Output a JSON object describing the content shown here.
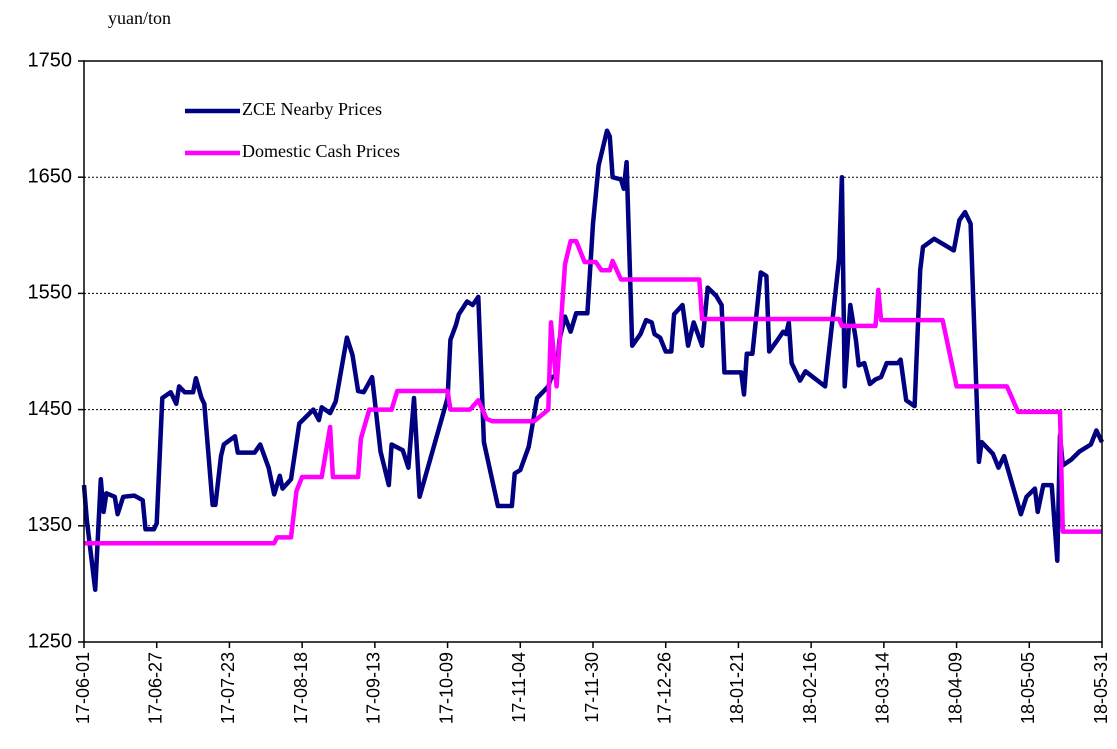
{
  "chart_data": {
    "type": "line",
    "y_label": "yuan/ton",
    "ylim": [
      1250,
      1750
    ],
    "yticks": [
      1250,
      1350,
      1450,
      1550,
      1650,
      1750
    ],
    "grid": true,
    "xlim": [
      "17-06-01",
      "18-05-31"
    ],
    "xticks": [
      "17-06-01",
      "17-06-27",
      "17-07-23",
      "17-08-18",
      "17-09-13",
      "17-10-09",
      "17-11-04",
      "17-11-30",
      "17-12-26",
      "18-01-21",
      "18-02-16",
      "18-03-14",
      "18-04-09",
      "18-05-05",
      "18-05-31"
    ],
    "legend": "upper left",
    "series": [
      {
        "name": "ZCE Nearby Prices",
        "color": "#000080",
        "x": [
          "17-06-01",
          "17-06-02",
          "17-06-05",
          "17-06-07",
          "17-06-08",
          "17-06-09",
          "17-06-12",
          "17-06-13",
          "17-06-15",
          "17-06-19",
          "17-06-22",
          "17-06-23",
          "17-06-26",
          "17-06-27",
          "17-06-29",
          "17-07-02",
          "17-07-04",
          "17-07-05",
          "17-07-07",
          "17-07-10",
          "17-07-11",
          "17-07-13",
          "17-07-14",
          "17-07-17",
          "17-07-18",
          "17-07-20",
          "17-07-21",
          "17-07-25",
          "17-07-26",
          "17-08-01",
          "17-08-03",
          "17-08-06",
          "17-08-08",
          "17-08-10",
          "17-08-11",
          "17-08-14",
          "17-08-17",
          "17-08-22",
          "17-08-24",
          "17-08-25",
          "17-08-28",
          "17-08-30",
          "17-09-03",
          "17-09-05",
          "17-09-07",
          "17-09-09",
          "17-09-12",
          "17-09-15",
          "17-09-18",
          "17-09-19",
          "17-09-23",
          "17-09-25",
          "17-09-27",
          "17-09-29",
          "17-10-09",
          "17-10-10",
          "17-10-12",
          "17-10-13",
          "17-10-16",
          "17-10-18",
          "17-10-20",
          "17-10-22",
          "17-10-24",
          "17-10-27",
          "17-11-01",
          "17-11-02",
          "17-11-04",
          "17-11-07",
          "17-11-10",
          "17-11-14",
          "17-11-15",
          "17-11-17",
          "17-11-18",
          "17-11-20",
          "17-11-22",
          "17-11-24",
          "17-11-28",
          "17-11-30",
          "17-12-02",
          "17-12-05",
          "17-12-06",
          "17-12-07",
          "17-12-10",
          "17-12-11",
          "17-12-12",
          "17-12-14",
          "17-12-17",
          "17-12-19",
          "17-12-21",
          "17-12-22",
          "17-12-24",
          "17-12-26",
          "17-12-28",
          "17-12-29",
          "18-01-01",
          "18-01-03",
          "18-01-05",
          "18-01-08",
          "18-01-10",
          "18-01-13",
          "18-01-15",
          "18-01-16",
          "18-01-22",
          "18-01-23",
          "18-01-24",
          "18-01-26",
          "18-01-29",
          "18-01-31",
          "18-02-01",
          "18-02-04",
          "18-02-06",
          "18-02-07",
          "18-02-08",
          "18-02-09",
          "18-02-11",
          "18-02-12",
          "18-02-14",
          "18-02-21",
          "18-02-24",
          "18-02-26",
          "18-02-27",
          "18-02-28",
          "18-03-02",
          "18-03-04",
          "18-03-05",
          "18-03-07",
          "18-03-09",
          "18-03-11",
          "18-03-13",
          "18-03-15",
          "18-03-19",
          "18-03-20",
          "18-03-22",
          "18-03-25",
          "18-03-27",
          "18-03-28",
          "18-04-01",
          "18-04-08",
          "18-04-10",
          "18-04-12",
          "18-04-14",
          "18-04-17",
          "18-04-18",
          "18-04-20",
          "18-04-22",
          "18-04-24",
          "18-04-26",
          "18-05-02",
          "18-05-04",
          "18-05-07",
          "18-05-08",
          "18-05-10",
          "18-05-13",
          "18-05-15",
          "18-05-16",
          "18-05-17",
          "18-05-20",
          "18-05-23",
          "18-05-27",
          "18-05-29",
          "18-05-31"
        ],
        "values": [
          1385,
          1355,
          1295,
          1390,
          1362,
          1378,
          1375,
          1360,
          1375,
          1376,
          1372,
          1347,
          1347,
          1352,
          1460,
          1465,
          1455,
          1470,
          1465,
          1465,
          1477,
          1460,
          1455,
          1368,
          1368,
          1410,
          1420,
          1427,
          1413,
          1413,
          1420,
          1400,
          1377,
          1393,
          1382,
          1390,
          1438,
          1450,
          1441,
          1452,
          1447,
          1457,
          1512,
          1497,
          1466,
          1465,
          1478,
          1414,
          1385,
          1420,
          1415,
          1400,
          1460,
          1375,
          1460,
          1510,
          1523,
          1532,
          1543,
          1540,
          1547,
          1422,
          1400,
          1367,
          1367,
          1395,
          1398,
          1418,
          1460,
          1470,
          1477,
          1480,
          1510,
          1530,
          1517,
          1533,
          1533,
          1610,
          1660,
          1690,
          1685,
          1650,
          1648,
          1640,
          1663,
          1505,
          1515,
          1527,
          1525,
          1515,
          1512,
          1500,
          1500,
          1532,
          1540,
          1505,
          1525,
          1505,
          1555,
          1548,
          1540,
          1482,
          1482,
          1463,
          1498,
          1498,
          1568,
          1565,
          1500,
          1510,
          1517,
          1515,
          1525,
          1490,
          1480,
          1475,
          1483,
          1470,
          1535,
          1580,
          1650,
          1470,
          1540,
          1510,
          1488,
          1490,
          1472,
          1476,
          1478,
          1490,
          1490,
          1493,
          1458,
          1453,
          1570,
          1590,
          1597,
          1587,
          1613,
          1620,
          1610,
          1405,
          1422,
          1417,
          1412,
          1400,
          1410,
          1360,
          1375,
          1382,
          1362,
          1385,
          1385,
          1320,
          1428,
          1402,
          1407,
          1414,
          1420,
          1432,
          1422
        ]
      },
      {
        "name": "Domestic Cash Prices",
        "color": "#ff00ff",
        "x": [
          "17-06-01",
          "17-08-08",
          "17-08-09",
          "17-08-14",
          "17-08-16",
          "17-08-18",
          "17-08-25",
          "17-08-28",
          "17-08-29",
          "17-09-07",
          "17-09-08",
          "17-09-11",
          "17-09-19",
          "17-09-21",
          "17-10-09",
          "17-10-10",
          "17-10-17",
          "17-10-20",
          "17-10-23",
          "17-10-25",
          "17-11-09",
          "17-11-14",
          "17-11-15",
          "17-11-17",
          "17-11-20",
          "17-11-22",
          "17-11-24",
          "17-11-27",
          "17-12-01",
          "17-12-03",
          "17-12-06",
          "17-12-07",
          "17-12-10",
          "18-01-07",
          "18-01-08",
          "18-02-26",
          "18-02-27",
          "18-03-11",
          "18-03-12",
          "18-03-13",
          "18-04-04",
          "18-04-09",
          "18-04-27",
          "18-05-01",
          "18-05-16",
          "18-05-17",
          "18-05-31"
        ],
        "values": [
          1335,
          1335,
          1340,
          1340,
          1380,
          1392,
          1392,
          1435,
          1392,
          1392,
          1425,
          1450,
          1450,
          1466,
          1466,
          1450,
          1450,
          1458,
          1442,
          1440,
          1440,
          1450,
          1525,
          1470,
          1575,
          1595,
          1595,
          1577,
          1577,
          1570,
          1570,
          1578,
          1562,
          1562,
          1528,
          1528,
          1522,
          1522,
          1553,
          1527,
          1527,
          1470,
          1470,
          1448,
          1448,
          1345,
          1345
        ]
      }
    ]
  }
}
